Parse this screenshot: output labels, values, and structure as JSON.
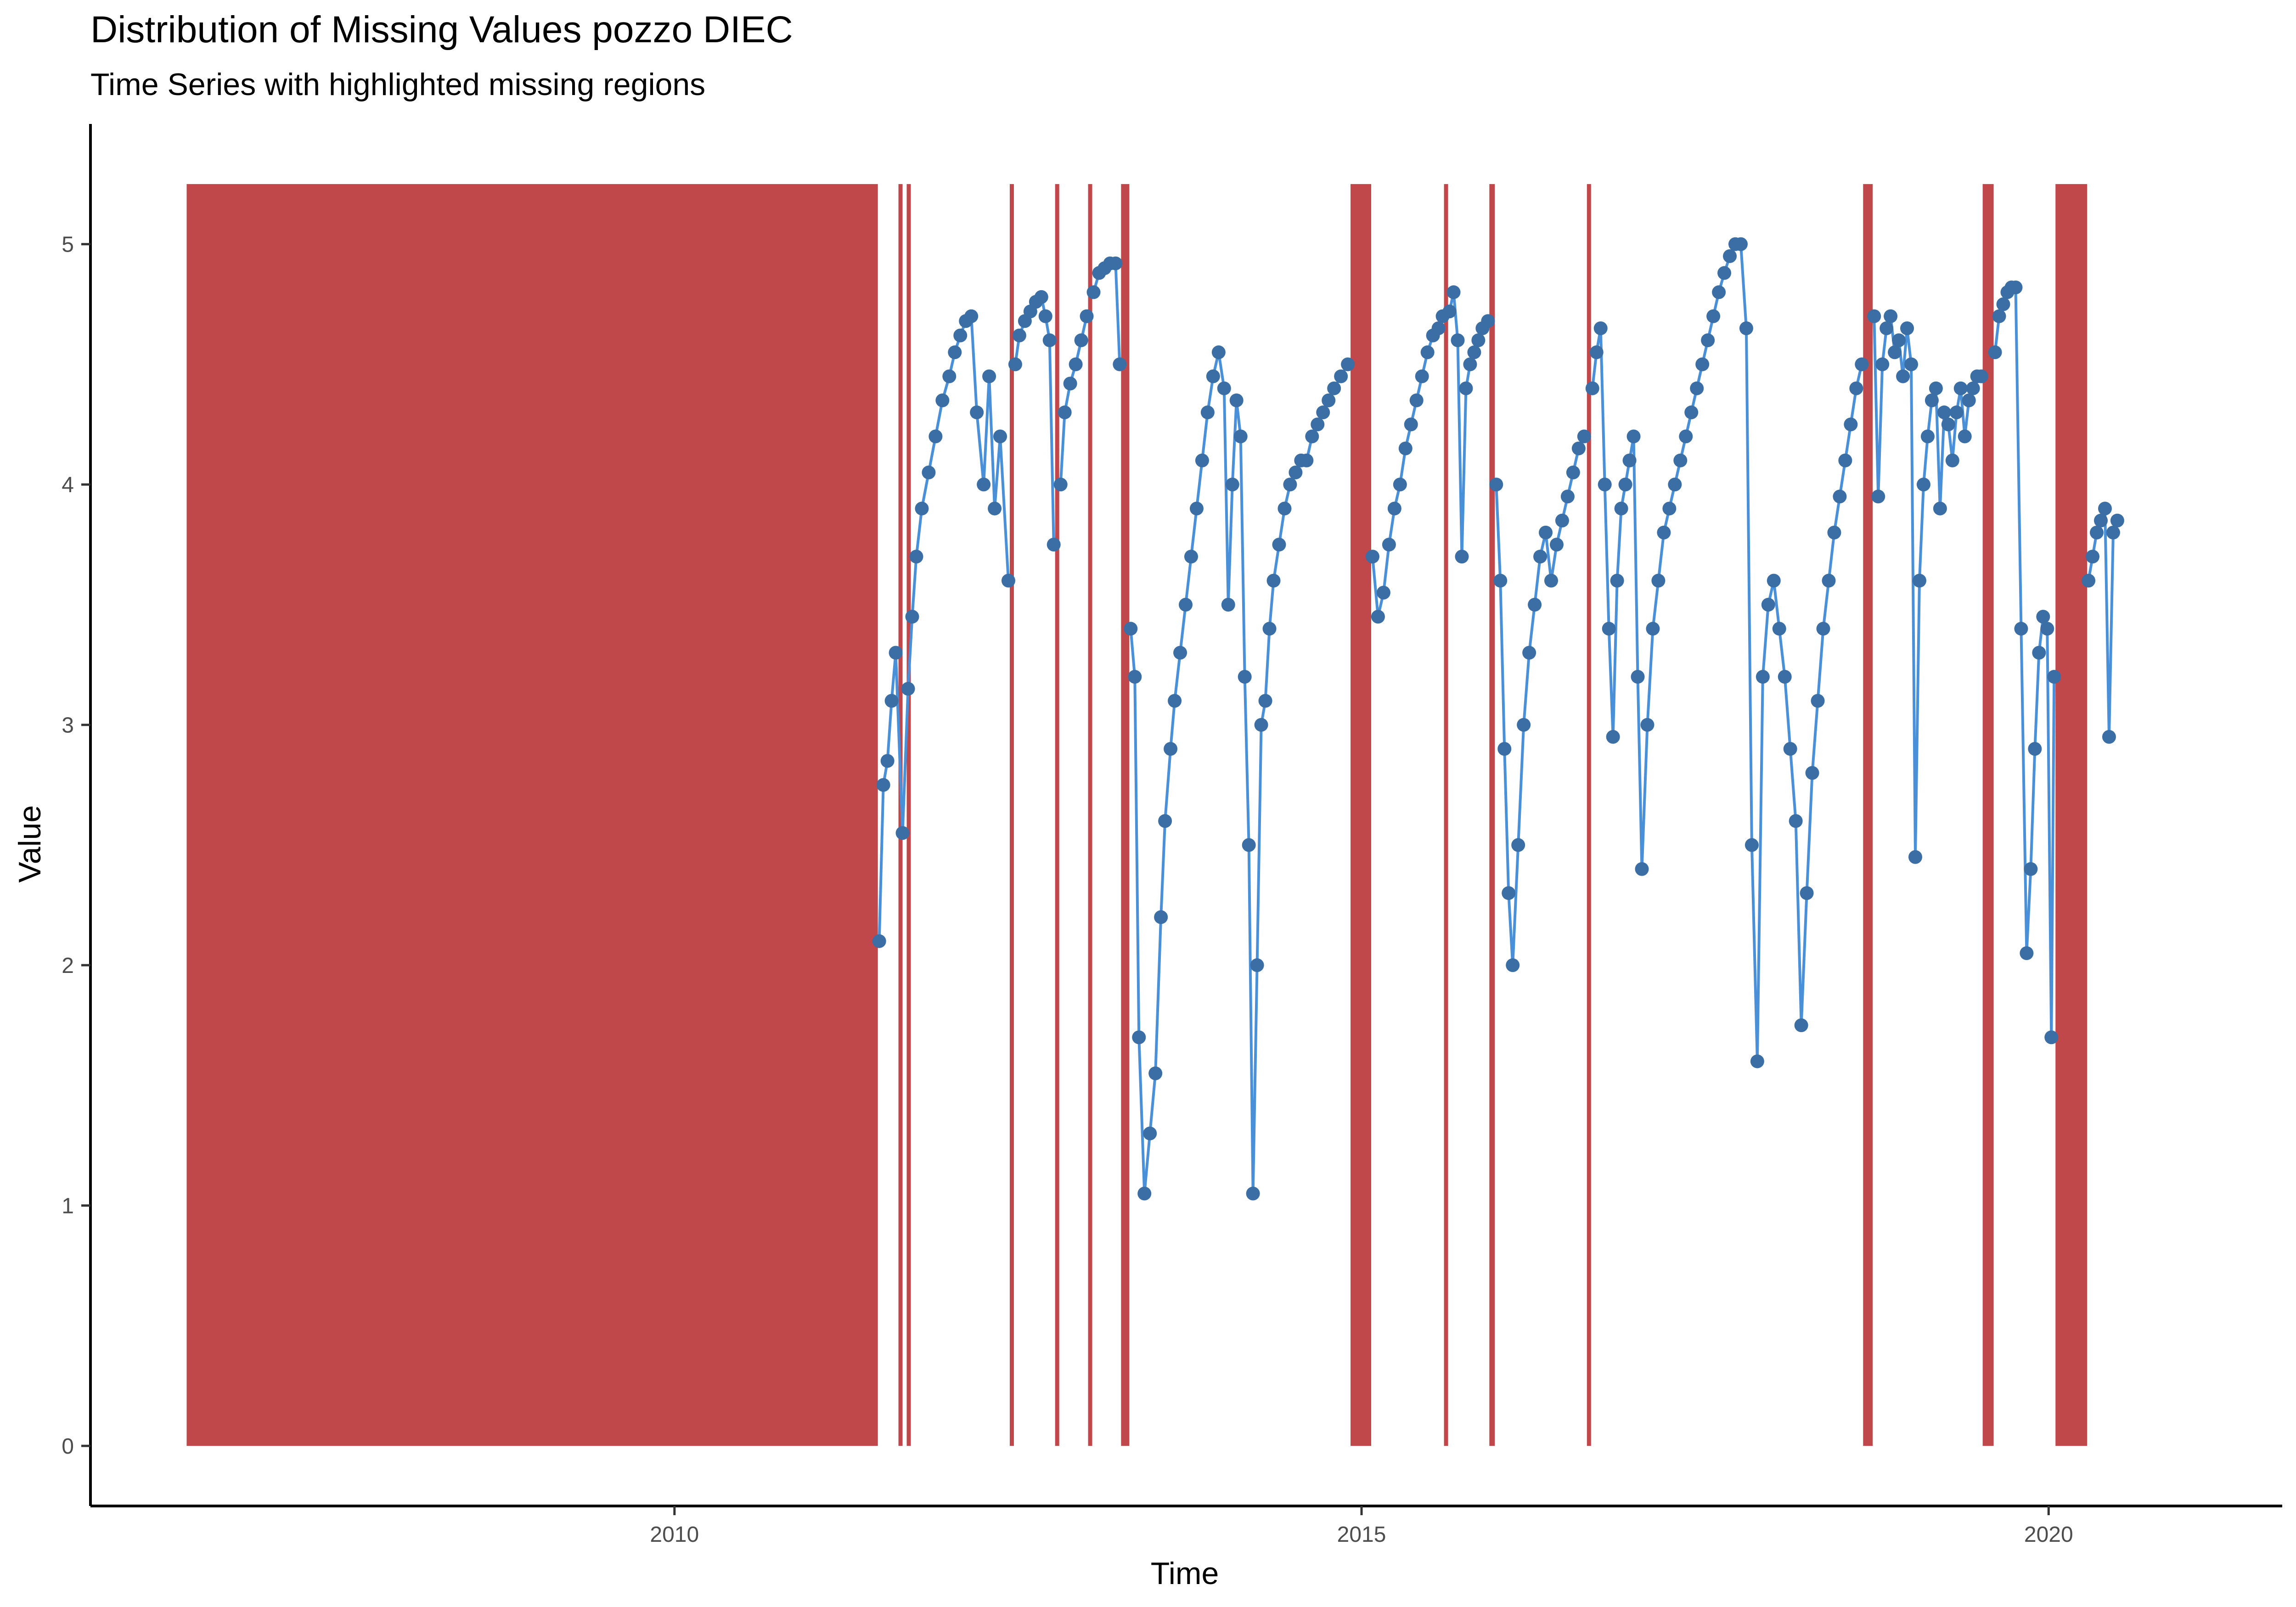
{
  "chart_data": {
    "type": "line",
    "title": "Distribution of Missing Values pozzo DIEC",
    "subtitle": "Time Series with highlighted missing regions",
    "xlabel": "Time",
    "ylabel": "Value",
    "xlim": [
      2005.75,
      2021.7
    ],
    "ylim": [
      -0.25,
      5.5
    ],
    "x_ticks": [
      2010,
      2015,
      2020
    ],
    "y_ticks": [
      0,
      1,
      2,
      3,
      4,
      5
    ],
    "grid": false,
    "legend": "none",
    "colors": {
      "missing_region": "#c0474a",
      "line": "#4a90d9",
      "points": "#3a6ea5"
    },
    "missing_regions": {
      "ymax": 5.25,
      "ranges": [
        [
          2006.45,
          2011.48
        ],
        [
          2011.63,
          2011.66
        ],
        [
          2011.69,
          2011.72
        ],
        [
          2012.44,
          2012.47
        ],
        [
          2012.77,
          2012.8
        ],
        [
          2013.01,
          2013.04
        ],
        [
          2013.25,
          2013.31
        ],
        [
          2014.92,
          2015.07
        ],
        [
          2015.6,
          2015.63
        ],
        [
          2015.93,
          2015.97
        ],
        [
          2016.64,
          2016.67
        ],
        [
          2018.65,
          2018.72
        ],
        [
          2019.52,
          2019.6
        ],
        [
          2020.05,
          2020.28
        ]
      ]
    },
    "series": [
      {
        "segments": [
          {
            "x": [
              2011.49,
              2011.52,
              2011.55,
              2011.58,
              2011.61,
              2011.66,
              2011.7,
              2011.73,
              2011.76,
              2011.8,
              2011.85,
              2011.9,
              2011.95,
              2012.0,
              2012.04,
              2012.08,
              2012.12,
              2012.16,
              2012.2,
              2012.25,
              2012.29,
              2012.33,
              2012.37,
              2012.43
            ],
            "y": [
              2.1,
              2.75,
              2.85,
              3.1,
              3.3,
              2.55,
              3.15,
              3.45,
              3.7,
              3.9,
              4.05,
              4.2,
              4.35,
              4.45,
              4.55,
              4.62,
              4.68,
              4.7,
              4.3,
              4.0,
              4.45,
              3.9,
              4.2,
              3.6
            ]
          },
          {
            "x": [
              2012.48,
              2012.51,
              2012.55,
              2012.59,
              2012.63,
              2012.67,
              2012.7,
              2012.73,
              2012.76
            ],
            "y": [
              4.5,
              4.62,
              4.68,
              4.72,
              4.76,
              4.78,
              4.7,
              4.6,
              3.75
            ]
          },
          {
            "x": [
              2012.81,
              2012.84,
              2012.88,
              2012.92,
              2012.96,
              2013.0
            ],
            "y": [
              4.0,
              4.3,
              4.42,
              4.5,
              4.6,
              4.7
            ]
          },
          {
            "x": [
              2013.05,
              2013.09,
              2013.13,
              2013.17,
              2013.21,
              2013.24
            ],
            "y": [
              4.8,
              4.88,
              4.9,
              4.92,
              4.92,
              4.5
            ]
          },
          {
            "x": [
              2013.32,
              2013.35,
              2013.38,
              2013.42,
              2013.46,
              2013.5,
              2013.54,
              2013.57,
              2013.61,
              2013.64,
              2013.68,
              2013.72,
              2013.76,
              2013.8,
              2013.84,
              2013.88,
              2013.92,
              2013.96,
              2014.0,
              2014.03,
              2014.06,
              2014.09,
              2014.12,
              2014.15,
              2014.18,
              2014.21,
              2014.24,
              2014.27,
              2014.3,
              2014.33,
              2014.36,
              2014.4,
              2014.44,
              2014.48,
              2014.52,
              2014.56,
              2014.6,
              2014.64,
              2014.68,
              2014.72,
              2014.76,
              2014.8,
              2014.85,
              2014.9
            ],
            "y": [
              3.4,
              3.2,
              1.7,
              1.05,
              1.3,
              1.55,
              2.2,
              2.6,
              2.9,
              3.1,
              3.3,
              3.5,
              3.7,
              3.9,
              4.1,
              4.3,
              4.45,
              4.55,
              4.4,
              3.5,
              4.0,
              4.35,
              4.2,
              3.2,
              2.5,
              1.05,
              2.0,
              3.0,
              3.1,
              3.4,
              3.6,
              3.75,
              3.9,
              4.0,
              4.05,
              4.1,
              4.1,
              4.2,
              4.25,
              4.3,
              4.35,
              4.4,
              4.45,
              4.5
            ]
          },
          {
            "x": [
              2015.08,
              2015.12,
              2015.16,
              2015.2,
              2015.24,
              2015.28,
              2015.32,
              2015.36,
              2015.4,
              2015.44,
              2015.48,
              2015.52,
              2015.56,
              2015.59
            ],
            "y": [
              3.7,
              3.45,
              3.55,
              3.75,
              3.9,
              4.0,
              4.15,
              4.25,
              4.35,
              4.45,
              4.55,
              4.62,
              4.65,
              4.7
            ]
          },
          {
            "x": [
              2015.64,
              2015.67,
              2015.7,
              2015.73,
              2015.76,
              2015.79,
              2015.82,
              2015.85,
              2015.88,
              2015.92
            ],
            "y": [
              4.72,
              4.8,
              4.6,
              3.7,
              4.4,
              4.5,
              4.55,
              4.6,
              4.65,
              4.68
            ]
          },
          {
            "x": [
              2015.98,
              2016.01,
              2016.04,
              2016.07,
              2016.1,
              2016.14,
              2016.18,
              2016.22,
              2016.26,
              2016.3,
              2016.34,
              2016.38,
              2016.42,
              2016.46,
              2016.5,
              2016.54,
              2016.58,
              2016.62
            ],
            "y": [
              4.0,
              3.6,
              2.9,
              2.3,
              2.0,
              2.5,
              3.0,
              3.3,
              3.5,
              3.7,
              3.8,
              3.6,
              3.75,
              3.85,
              3.95,
              4.05,
              4.15,
              4.2
            ]
          },
          {
            "x": [
              2016.68,
              2016.71,
              2016.74,
              2016.77,
              2016.8,
              2016.83,
              2016.86,
              2016.89,
              2016.92,
              2016.95,
              2016.98,
              2017.01,
              2017.04,
              2017.08,
              2017.12,
              2017.16,
              2017.2,
              2017.24,
              2017.28,
              2017.32,
              2017.36,
              2017.4,
              2017.44,
              2017.48,
              2017.52,
              2017.56,
              2017.6,
              2017.64,
              2017.68,
              2017.72,
              2017.76,
              2017.8,
              2017.84,
              2017.88,
              2017.92,
              2017.96,
              2018.0,
              2018.04,
              2018.08,
              2018.12,
              2018.16,
              2018.2,
              2018.24,
              2018.28,
              2018.32,
              2018.36,
              2018.4,
              2018.44,
              2018.48,
              2018.52,
              2018.56,
              2018.6,
              2018.64
            ],
            "y": [
              4.4,
              4.55,
              4.65,
              4.0,
              3.4,
              2.95,
              3.6,
              3.9,
              4.0,
              4.1,
              4.2,
              3.2,
              2.4,
              3.0,
              3.4,
              3.6,
              3.8,
              3.9,
              4.0,
              4.1,
              4.2,
              4.3,
              4.4,
              4.5,
              4.6,
              4.7,
              4.8,
              4.88,
              4.95,
              5.0,
              5.0,
              4.65,
              2.5,
              1.6,
              3.2,
              3.5,
              3.6,
              3.4,
              3.2,
              2.9,
              2.6,
              1.75,
              2.3,
              2.8,
              3.1,
              3.4,
              3.6,
              3.8,
              3.95,
              4.1,
              4.25,
              4.4,
              4.5
            ]
          },
          {
            "x": [
              2018.73,
              2018.76,
              2018.79,
              2018.82,
              2018.85,
              2018.88,
              2018.91,
              2018.94,
              2018.97,
              2019.0,
              2019.03,
              2019.06,
              2019.09,
              2019.12,
              2019.15,
              2019.18,
              2019.21,
              2019.24,
              2019.27,
              2019.3,
              2019.33,
              2019.36,
              2019.39,
              2019.42,
              2019.45,
              2019.48,
              2019.51
            ],
            "y": [
              4.7,
              3.95,
              4.5,
              4.65,
              4.7,
              4.55,
              4.6,
              4.45,
              4.65,
              4.5,
              2.45,
              3.6,
              4.0,
              4.2,
              4.35,
              4.4,
              3.9,
              4.3,
              4.25,
              4.1,
              4.3,
              4.4,
              4.2,
              4.35,
              4.4,
              4.45,
              4.45
            ]
          },
          {
            "x": [
              2019.61,
              2019.64,
              2019.67,
              2019.7,
              2019.73,
              2019.76,
              2019.8,
              2019.84,
              2019.87,
              2019.9,
              2019.93,
              2019.96,
              2019.99,
              2020.02,
              2020.04
            ],
            "y": [
              4.55,
              4.7,
              4.75,
              4.8,
              4.82,
              4.82,
              3.4,
              2.05,
              2.4,
              2.9,
              3.3,
              3.45,
              3.4,
              1.7,
              3.2
            ]
          },
          {
            "x": [
              2020.29,
              2020.32,
              2020.35,
              2020.38,
              2020.41,
              2020.44,
              2020.47,
              2020.5
            ],
            "y": [
              3.6,
              3.7,
              3.8,
              3.85,
              3.9,
              2.95,
              3.8,
              3.85
            ]
          }
        ]
      }
    ]
  }
}
